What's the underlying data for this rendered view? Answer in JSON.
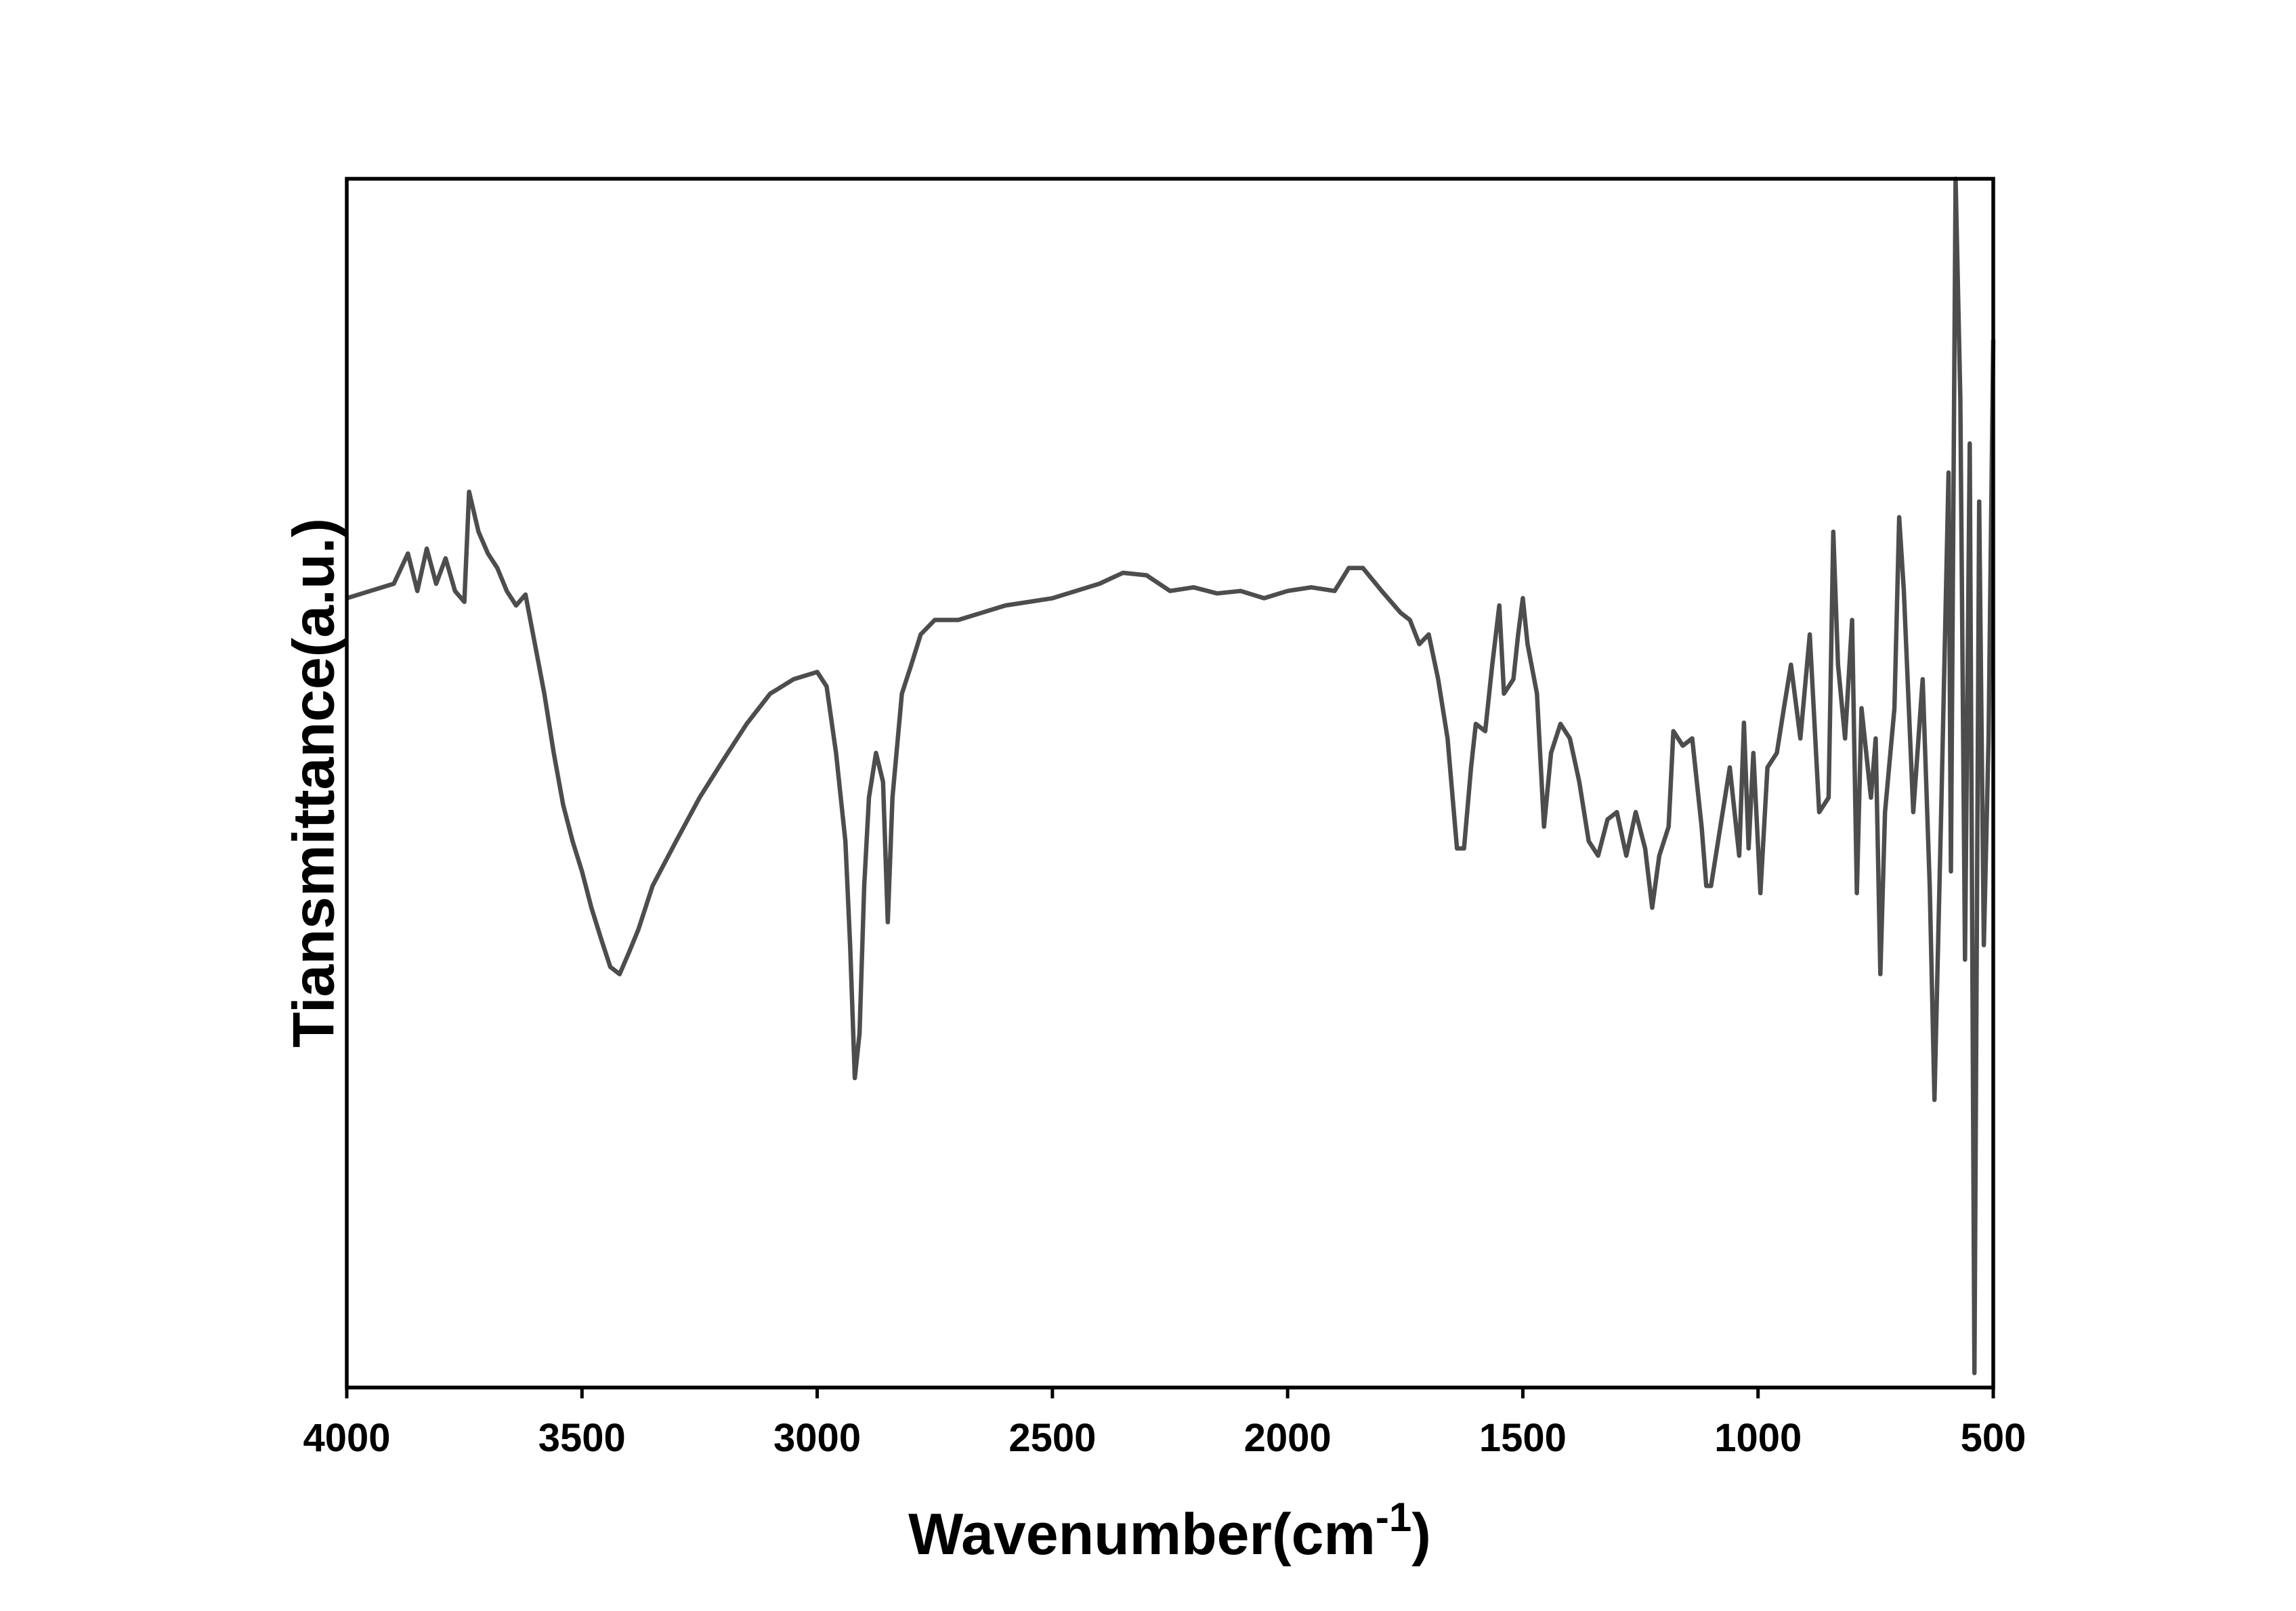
{
  "chart_data": {
    "type": "line",
    "xlabel": [
      "Wavenumber(cm",
      "-1",
      ")"
    ],
    "ylabel": "Tiansmittance(a.u.)",
    "xlim": [
      4000,
      500
    ],
    "ylim": [
      0,
      100
    ],
    "xticks": [
      4000,
      3500,
      3000,
      2500,
      2000,
      1500,
      1000,
      500
    ],
    "x": [
      4000,
      3950,
      3900,
      3870,
      3850,
      3830,
      3810,
      3790,
      3770,
      3750,
      3740,
      3720,
      3700,
      3680,
      3660,
      3640,
      3620,
      3600,
      3580,
      3560,
      3540,
      3520,
      3500,
      3480,
      3460,
      3440,
      3420,
      3400,
      3380,
      3350,
      3300,
      3250,
      3200,
      3150,
      3100,
      3050,
      3000,
      2980,
      2960,
      2940,
      2930,
      2920,
      2910,
      2900,
      2890,
      2875,
      2860,
      2850,
      2840,
      2820,
      2800,
      2780,
      2750,
      2700,
      2650,
      2600,
      2550,
      2500,
      2450,
      2400,
      2350,
      2300,
      2250,
      2200,
      2150,
      2100,
      2050,
      2000,
      1950,
      1900,
      1870,
      1840,
      1800,
      1760,
      1740,
      1720,
      1700,
      1680,
      1660,
      1640,
      1625,
      1610,
      1600,
      1580,
      1565,
      1550,
      1540,
      1520,
      1510,
      1500,
      1490,
      1470,
      1455,
      1440,
      1420,
      1400,
      1380,
      1360,
      1340,
      1320,
      1300,
      1280,
      1260,
      1240,
      1225,
      1210,
      1190,
      1180,
      1160,
      1140,
      1120,
      1110,
      1100,
      1080,
      1060,
      1040,
      1030,
      1020,
      1010,
      995,
      980,
      960,
      945,
      930,
      910,
      890,
      870,
      850,
      840,
      830,
      815,
      800,
      790,
      780,
      760,
      750,
      740,
      730,
      710,
      700,
      690,
      670,
      650,
      635,
      625,
      610,
      595,
      590,
      580,
      570,
      560,
      550,
      540,
      530,
      520,
      510,
      500
    ],
    "series": [
      {
        "color": "#4d4d4d",
        "values": [
          65.3,
          65.9,
          66.5,
          69.0,
          65.9,
          69.4,
          66.5,
          68.6,
          65.9,
          65.0,
          74.1,
          70.8,
          69.0,
          67.8,
          65.9,
          64.7,
          65.6,
          61.5,
          57.4,
          52.5,
          48.2,
          45.2,
          42.7,
          39.7,
          37.2,
          34.8,
          34.2,
          36.0,
          37.9,
          41.5,
          45.2,
          48.8,
          51.9,
          54.9,
          57.4,
          58.6,
          59.2,
          58.0,
          52.5,
          45.2,
          36.6,
          25.6,
          29.3,
          41.5,
          48.8,
          52.5,
          50.1,
          38.5,
          48.8,
          57.4,
          59.8,
          62.3,
          63.5,
          63.5,
          64.1,
          64.7,
          65.0,
          65.3,
          65.9,
          66.5,
          67.4,
          67.2,
          65.9,
          66.2,
          65.7,
          65.9,
          65.3,
          65.9,
          66.2,
          65.9,
          67.8,
          67.8,
          65.9,
          64.1,
          63.5,
          61.5,
          62.3,
          58.6,
          53.7,
          44.6,
          44.6,
          51.3,
          54.9,
          54.3,
          59.8,
          64.7,
          57.4,
          58.6,
          62.3,
          65.3,
          61.5,
          57.4,
          46.4,
          52.5,
          54.9,
          53.7,
          50.1,
          45.2,
          44.0,
          47.0,
          47.6,
          44.0,
          47.6,
          44.6,
          39.7,
          44.0,
          46.4,
          54.3,
          53.1,
          53.7,
          46.4,
          41.5,
          41.5,
          46.4,
          51.3,
          44.0,
          55.0,
          44.6,
          52.5,
          40.9,
          51.3,
          52.5,
          56.2,
          59.8,
          53.7,
          62.3,
          47.6,
          48.8,
          70.8,
          59.8,
          53.7,
          63.5,
          40.9,
          56.2,
          48.8,
          53.7,
          34.2,
          47.6,
          56.2,
          72.0,
          65.9,
          47.6,
          58.6,
          41.5,
          23.8,
          48.8,
          75.7,
          42.7,
          100,
          81.8,
          35.4,
          78.1,
          1.2,
          73.3,
          36.6,
          53.7,
          86.7
        ]
      }
    ]
  }
}
